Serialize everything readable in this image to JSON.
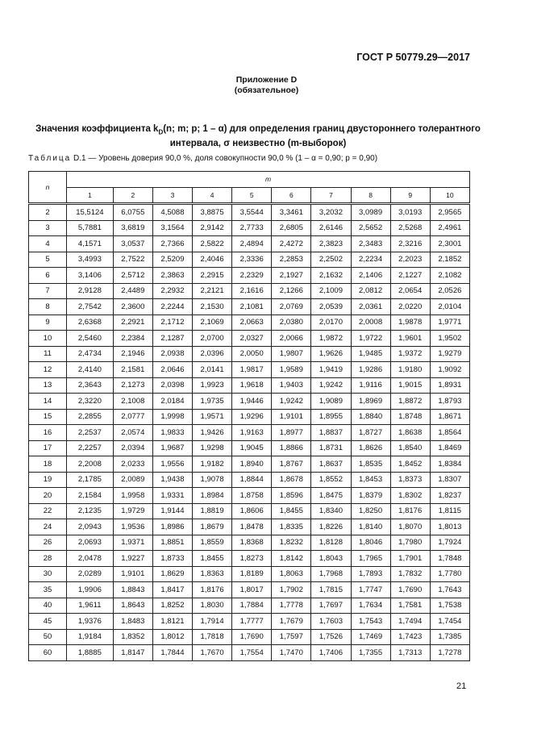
{
  "header": {
    "standard": "ГОСТ Р 50779.29—2017"
  },
  "annex": {
    "title": "Приложение D",
    "status": "(обязательное)"
  },
  "section_title": {
    "part1": "Значения коэффициента k",
    "sub": "D",
    "part2": "(n; m; p; 1 – α) для определения границ двустороннего толерантного",
    "line2": "интервала, σ неизвестно (m-выборок)"
  },
  "caption": {
    "label": "Таблица",
    "text": "D.1 — Уровень доверия 90,0 %, доля совокупности 90,0 % (1 – α = 0,90; p = 0,90)"
  },
  "table": {
    "row_header": "n",
    "col_group_header": "m",
    "columns": [
      "1",
      "2",
      "3",
      "4",
      "5",
      "6",
      "7",
      "8",
      "9",
      "10"
    ],
    "rows": [
      [
        "2",
        "15,5124",
        "6,0755",
        "4,5088",
        "3,8875",
        "3,5544",
        "3,3461",
        "3,2032",
        "3,0989",
        "3,0193",
        "2,9565"
      ],
      [
        "3",
        "5,7881",
        "3,6819",
        "3,1564",
        "2,9142",
        "2,7733",
        "2,6805",
        "2,6146",
        "2,5652",
        "2,5268",
        "2,4961"
      ],
      [
        "4",
        "4,1571",
        "3,0537",
        "2,7366",
        "2,5822",
        "2,4894",
        "2,4272",
        "2,3823",
        "2,3483",
        "2,3216",
        "2,3001"
      ],
      [
        "5",
        "3,4993",
        "2,7522",
        "2,5209",
        "2,4046",
        "2,3336",
        "2,2853",
        "2,2502",
        "2,2234",
        "2,2023",
        "2,1852"
      ],
      [
        "6",
        "3,1406",
        "2,5712",
        "2,3863",
        "2,2915",
        "2,2329",
        "2,1927",
        "2,1632",
        "2,1406",
        "2,1227",
        "2,1082"
      ],
      [
        "7",
        "2,9128",
        "2,4489",
        "2,2932",
        "2,2121",
        "2,1616",
        "2,1266",
        "2,1009",
        "2,0812",
        "2,0654",
        "2,0526"
      ],
      [
        "8",
        "2,7542",
        "2,3600",
        "2,2244",
        "2,1530",
        "2,1081",
        "2,0769",
        "2,0539",
        "2,0361",
        "2,0220",
        "2,0104"
      ],
      [
        "9",
        "2,6368",
        "2,2921",
        "2,1712",
        "2,1069",
        "2,0663",
        "2,0380",
        "2,0170",
        "2,0008",
        "1,9878",
        "1,9771"
      ],
      [
        "10",
        "2,5460",
        "2,2384",
        "2,1287",
        "2,0700",
        "2,0327",
        "2,0066",
        "1,9872",
        "1,9722",
        "1,9601",
        "1,9502"
      ],
      [
        "11",
        "2,4734",
        "2,1946",
        "2,0938",
        "2,0396",
        "2,0050",
        "1,9807",
        "1,9626",
        "1,9485",
        "1,9372",
        "1,9279"
      ],
      [
        "12",
        "2,4140",
        "2,1581",
        "2,0646",
        "2,0141",
        "1,9817",
        "1,9589",
        "1,9419",
        "1,9286",
        "1,9180",
        "1,9092"
      ],
      [
        "13",
        "2,3643",
        "2,1273",
        "2,0398",
        "1,9923",
        "1,9618",
        "1,9403",
        "1,9242",
        "1,9116",
        "1,9015",
        "1,8931"
      ],
      [
        "14",
        "2,3220",
        "2,1008",
        "2,0184",
        "1,9735",
        "1,9446",
        "1,9242",
        "1,9089",
        "1,8969",
        "1,8872",
        "1,8793"
      ],
      [
        "15",
        "2,2855",
        "2,0777",
        "1,9998",
        "1,9571",
        "1,9296",
        "1,9101",
        "1,8955",
        "1,8840",
        "1,8748",
        "1,8671"
      ],
      [
        "16",
        "2,2537",
        "2,0574",
        "1,9833",
        "1,9426",
        "1,9163",
        "1,8977",
        "1,8837",
        "1,8727",
        "1,8638",
        "1,8564"
      ],
      [
        "17",
        "2,2257",
        "2,0394",
        "1,9687",
        "1,9298",
        "1,9045",
        "1,8866",
        "1,8731",
        "1,8626",
        "1,8540",
        "1,8469"
      ],
      [
        "18",
        "2,2008",
        "2,0233",
        "1,9556",
        "1,9182",
        "1,8940",
        "1,8767",
        "1,8637",
        "1,8535",
        "1,8452",
        "1,8384"
      ],
      [
        "19",
        "2,1785",
        "2,0089",
        "1,9438",
        "1,9078",
        "1,8844",
        "1,8678",
        "1,8552",
        "1,8453",
        "1,8373",
        "1,8307"
      ],
      [
        "20",
        "2,1584",
        "1,9958",
        "1,9331",
        "1,8984",
        "1,8758",
        "1,8596",
        "1,8475",
        "1,8379",
        "1,8302",
        "1,8237"
      ],
      [
        "22",
        "2,1235",
        "1,9729",
        "1,9144",
        "1,8819",
        "1,8606",
        "1,8455",
        "1,8340",
        "1,8250",
        "1,8176",
        "1,8115"
      ],
      [
        "24",
        "2,0943",
        "1,9536",
        "1,8986",
        "1,8679",
        "1,8478",
        "1,8335",
        "1,8226",
        "1,8140",
        "1,8070",
        "1,8013"
      ],
      [
        "26",
        "2,0693",
        "1,9371",
        "1,8851",
        "1,8559",
        "1,8368",
        "1,8232",
        "1,8128",
        "1,8046",
        "1,7980",
        "1,7924"
      ],
      [
        "28",
        "2,0478",
        "1,9227",
        "1,8733",
        "1,8455",
        "1,8273",
        "1,8142",
        "1,8043",
        "1,7965",
        "1,7901",
        "1,7848"
      ],
      [
        "30",
        "2,0289",
        "1,9101",
        "1,8629",
        "1,8363",
        "1,8189",
        "1,8063",
        "1,7968",
        "1,7893",
        "1,7832",
        "1,7780"
      ],
      [
        "35",
        "1,9906",
        "1,8843",
        "1,8417",
        "1,8176",
        "1,8017",
        "1,7902",
        "1,7815",
        "1,7747",
        "1,7690",
        "1,7643"
      ],
      [
        "40",
        "1,9611",
        "1,8643",
        "1,8252",
        "1,8030",
        "1,7884",
        "1,7778",
        "1,7697",
        "1,7634",
        "1,7581",
        "1,7538"
      ],
      [
        "45",
        "1,9376",
        "1,8483",
        "1,8121",
        "1,7914",
        "1,7777",
        "1,7679",
        "1,7603",
        "1,7543",
        "1,7494",
        "1,7454"
      ],
      [
        "50",
        "1,9184",
        "1,8352",
        "1,8012",
        "1,7818",
        "1,7690",
        "1,7597",
        "1,7526",
        "1,7469",
        "1,7423",
        "1,7385"
      ],
      [
        "60",
        "1,8885",
        "1,8147",
        "1,7844",
        "1,7670",
        "1,7554",
        "1,7470",
        "1,7406",
        "1,7355",
        "1,7313",
        "1,7278"
      ]
    ]
  },
  "footer": {
    "page_number": "21"
  }
}
